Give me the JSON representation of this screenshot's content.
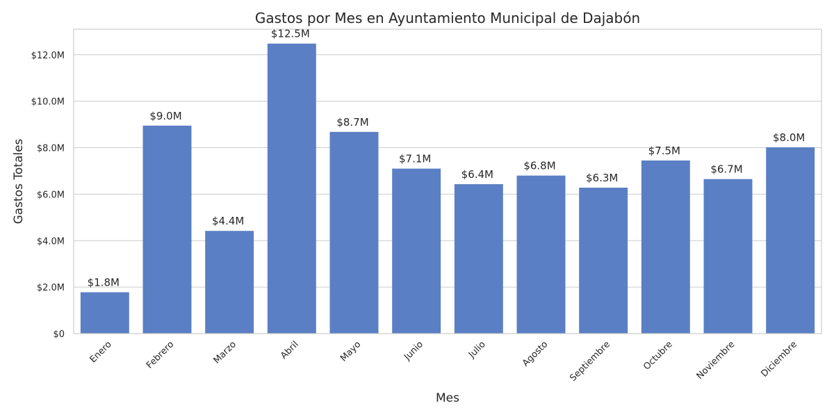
{
  "chart_data": {
    "type": "bar",
    "title": "Gastos por Mes en Ayuntamiento Municipal de Dajabón",
    "xlabel": "Mes",
    "ylabel": "Gastos Totales",
    "categories": [
      "Enero",
      "Febrero",
      "Marzo",
      "Abril",
      "Mayo",
      "Junio",
      "Julio",
      "Agosto",
      "Septiembre",
      "Octubre",
      "Noviembre",
      "Diciembre"
    ],
    "values": [
      1.78,
      8.95,
      4.42,
      12.48,
      8.68,
      7.1,
      6.43,
      6.8,
      6.28,
      7.45,
      6.65,
      8.02
    ],
    "data_labels": [
      "$1.8M",
      "$9.0M",
      "$4.4M",
      "$12.5M",
      "$8.7M",
      "$7.1M",
      "$6.4M",
      "$6.8M",
      "$6.3M",
      "$7.5M",
      "$6.7M",
      "$8.0M"
    ],
    "value_unit": "millions USD",
    "yticks": [
      0,
      2,
      4,
      6,
      8,
      10,
      12
    ],
    "ytick_labels": [
      "$0",
      "$2.0M",
      "$4.0M",
      "$6.0M",
      "$8.0M",
      "$10.0M",
      "$12.0M"
    ],
    "ylim": [
      0,
      13.1
    ],
    "grid": "horizontal",
    "bar_color": "#5b7fc4",
    "legend": "none"
  }
}
